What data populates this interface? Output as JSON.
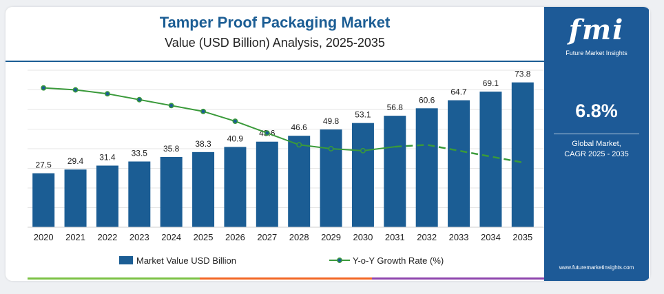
{
  "header": {
    "title": "Tamper Proof Packaging Market",
    "subtitle": "Value (USD Billion) Analysis, 2025-2035"
  },
  "sidebar": {
    "logo_text": "fmi",
    "logo_subtitle": "Future Market Insights",
    "cagr_value": "6.8%",
    "cagr_label_line1": "Global Market,",
    "cagr_label_line2": "CAGR 2025 - 2035",
    "website": "www.futuremarketinsights.com"
  },
  "colors": {
    "bar": "#1b5d94",
    "line": "#3a9a3a",
    "sidebar": "#1d5a97",
    "bottom_bar": [
      "#7ac143",
      "#f26522",
      "#8e44ad"
    ]
  },
  "chart_data": {
    "type": "bar",
    "categories": [
      "2020",
      "2021",
      "2022",
      "2023",
      "2024",
      "2025",
      "2026",
      "2027",
      "2028",
      "2029",
      "2030",
      "2031",
      "2032",
      "2033",
      "2034",
      "2035"
    ],
    "series": [
      {
        "name": "Market Value USD Billion",
        "type": "bar",
        "values": [
          27.5,
          29.4,
          31.4,
          33.5,
          35.8,
          38.3,
          40.9,
          43.6,
          46.6,
          49.8,
          53.1,
          56.8,
          60.6,
          64.7,
          69.1,
          73.8
        ],
        "labels": [
          "27.5",
          "29.4",
          "31.4",
          "33.5",
          "35.8",
          "38.3",
          "40.9",
          "43.6",
          "46.6",
          "49.8",
          "53.1",
          "56.8",
          "60.6",
          "64.7",
          "69.1",
          "73.8"
        ]
      },
      {
        "name": "Y-o-Y Growth Rate (%)",
        "type": "line",
        "values": [
          7.1,
          7.0,
          6.8,
          6.5,
          6.2,
          5.9,
          5.4,
          4.8,
          4.2,
          4.0,
          3.9,
          4.1,
          4.2,
          3.9,
          3.6,
          3.3
        ],
        "solid_until_index": 11,
        "dashed_from_index": 11
      }
    ],
    "ylim": [
      0,
      80
    ],
    "line_ylim": [
      0,
      8
    ],
    "grid": true,
    "legend_position": "bottom"
  }
}
